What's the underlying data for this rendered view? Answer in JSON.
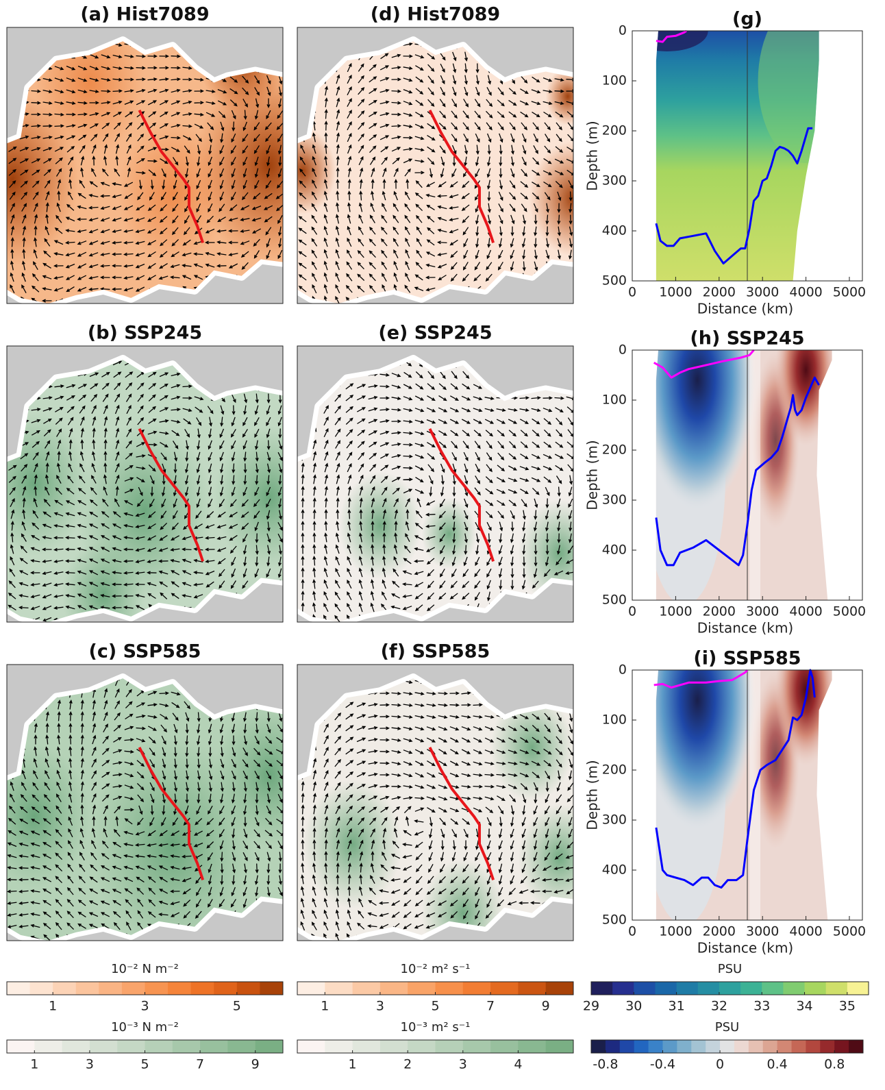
{
  "chart_data": [
    {
      "type": "map",
      "title": "(a) Hist7089"
    },
    {
      "type": "map",
      "title": "(b) SSP245"
    },
    {
      "type": "map",
      "title": "(c) SSP585"
    },
    {
      "type": "map",
      "title": "(d) Hist7089"
    },
    {
      "type": "map",
      "title": "(e) SSP245"
    },
    {
      "type": "map",
      "title": "(f) SSP585"
    },
    {
      "type": "section",
      "title": "(g)",
      "xlabel": "Distance (km)",
      "ylabel": "Depth (m)",
      "xlim": [
        0,
        5300
      ],
      "ylim": [
        500,
        0
      ],
      "xticks": [
        0,
        1000,
        2000,
        3000,
        4000,
        5000
      ],
      "yticks": [
        0,
        100,
        200,
        300,
        400,
        500
      ],
      "vline": 2650,
      "fill": "mean",
      "series": [
        {
          "color": "#0000ff",
          "x": [
            550,
            650,
            800,
            950,
            1100,
            1400,
            1700,
            1900,
            2100,
            2300,
            2500,
            2600,
            2700,
            2800,
            2900,
            3000,
            3100,
            3200,
            3300,
            3400,
            3500,
            3600,
            3700,
            3800,
            3900,
            4000,
            4050,
            4150
          ],
          "values": [
            385,
            420,
            430,
            430,
            415,
            410,
            405,
            440,
            465,
            450,
            435,
            435,
            395,
            340,
            330,
            300,
            295,
            270,
            240,
            232,
            235,
            240,
            250,
            265,
            240,
            210,
            195,
            195
          ]
        },
        {
          "color": "#ff00ff",
          "x": [
            550,
            700,
            800,
            1000,
            1200,
            1250
          ],
          "values": [
            20,
            22,
            12,
            10,
            3,
            0
          ]
        }
      ]
    },
    {
      "type": "section",
      "title": "(h) SSP245",
      "xlabel": "Distance (km)",
      "ylabel": "Depth (m)",
      "xlim": [
        0,
        5300
      ],
      "ylim": [
        500,
        0
      ],
      "xticks": [
        0,
        1000,
        2000,
        3000,
        4000,
        5000
      ],
      "yticks": [
        0,
        100,
        200,
        300,
        400,
        500
      ],
      "vline": 2650,
      "fill": "anomaly",
      "series": [
        {
          "color": "#0000ff",
          "x": [
            550,
            650,
            800,
            950,
            1100,
            1400,
            1700,
            2000,
            2300,
            2450,
            2550,
            2650,
            2750,
            2850,
            3050,
            3200,
            3350,
            3450,
            3500,
            3600,
            3650,
            3700,
            3750,
            3800,
            3900,
            4000,
            4100,
            4200,
            4300
          ],
          "values": [
            335,
            400,
            430,
            430,
            405,
            395,
            380,
            400,
            420,
            430,
            410,
            350,
            280,
            240,
            225,
            215,
            200,
            175,
            160,
            130,
            115,
            90,
            120,
            130,
            120,
            95,
            75,
            55,
            70
          ]
        },
        {
          "color": "#ff00ff",
          "x": [
            500,
            700,
            900,
            1100,
            1300,
            1700,
            2100,
            2500,
            2700,
            2800
          ],
          "values": [
            25,
            35,
            55,
            45,
            38,
            30,
            22,
            15,
            10,
            0
          ]
        }
      ]
    },
    {
      "type": "section",
      "title": "(i) SSP585",
      "xlabel": "Distance (km)",
      "ylabel": "Depth (m)",
      "xlim": [
        0,
        5300
      ],
      "ylim": [
        500,
        0
      ],
      "xticks": [
        0,
        1000,
        2000,
        3000,
        4000,
        5000
      ],
      "yticks": [
        0,
        100,
        200,
        300,
        400,
        500
      ],
      "vline": 2650,
      "fill": "anomaly",
      "series": [
        {
          "color": "#0000ff",
          "x": [
            550,
            700,
            800,
            1000,
            1200,
            1400,
            1600,
            1750,
            1900,
            2050,
            2200,
            2400,
            2550,
            2650,
            2800,
            2950,
            3100,
            3200,
            3300,
            3450,
            3600,
            3700,
            3800,
            3900,
            4000,
            4100,
            4150,
            4200
          ],
          "values": [
            315,
            400,
            410,
            415,
            420,
            430,
            415,
            415,
            430,
            435,
            420,
            420,
            410,
            340,
            240,
            200,
            190,
            185,
            180,
            160,
            140,
            95,
            100,
            90,
            55,
            0,
            15,
            55
          ]
        },
        {
          "color": "#ff00ff",
          "x": [
            500,
            700,
            900,
            1100,
            1300,
            1700,
            2000,
            2300,
            2400,
            2600,
            2650
          ],
          "values": [
            30,
            28,
            35,
            30,
            25,
            25,
            22,
            20,
            15,
            5,
            0
          ]
        }
      ]
    },
    {
      "type": "colorbar",
      "label": "10⁻² N m⁻²",
      "xlim": [
        0,
        6
      ],
      "xticks": [
        1,
        3,
        5
      ],
      "colors": [
        "#fdeee3",
        "#fde3d0",
        "#fcd3b6",
        "#fbc49d",
        "#fab484",
        "#f9a46b",
        "#f79451",
        "#f5843a",
        "#ee7327",
        "#e0631a",
        "#c9520f",
        "#a84208"
      ]
    },
    {
      "type": "colorbar",
      "label": "10⁻³ N m⁻²",
      "xlim": [
        0,
        10
      ],
      "xticks": [
        1,
        3,
        5,
        7,
        9
      ],
      "colors": [
        "#fbf4f2",
        "#eeeee8",
        "#e1e7dd",
        "#d3dfd1",
        "#c5d8c5",
        "#b6d0b8",
        "#a7c8ab",
        "#98c09e",
        "#89b891",
        "#7aaf84"
      ]
    },
    {
      "type": "colorbar",
      "label": "10⁻² m² s⁻¹",
      "xlim": [
        0,
        10
      ],
      "xticks": [
        1,
        3,
        5,
        7,
        9
      ],
      "colors": [
        "#fdeee3",
        "#fcdcc4",
        "#fbc9a5",
        "#fab686",
        "#f9a367",
        "#f7904b",
        "#f27d33",
        "#e46a20",
        "#cb5512",
        "#a84208"
      ]
    },
    {
      "type": "colorbar",
      "label": "10⁻³ m² s⁻¹",
      "xlim": [
        0,
        5
      ],
      "xticks": [
        1,
        2,
        3,
        4
      ],
      "colors": [
        "#fbf4f2",
        "#eeeee8",
        "#e1e7dd",
        "#d3dfd1",
        "#c5d8c5",
        "#b6d0b8",
        "#a7c8ab",
        "#98c09e",
        "#89b891",
        "#7aaf84"
      ]
    },
    {
      "type": "colorbar",
      "label": "PSU",
      "xlim": [
        29,
        35.5
      ],
      "xticks": [
        29,
        30,
        31,
        32,
        33,
        34,
        35
      ],
      "colors": [
        "#1f1f5c",
        "#262f8f",
        "#1d4fa6",
        "#1a67a8",
        "#1f7ca6",
        "#258ea3",
        "#2ea19e",
        "#3cb295",
        "#5ec187",
        "#80cc70",
        "#a7d65f",
        "#cfdf6a",
        "#f7f294"
      ]
    },
    {
      "type": "colorbar",
      "label": "PSU",
      "xlim": [
        -0.9,
        1.0
      ],
      "xticks": [
        -0.8,
        -0.4,
        0,
        0.4,
        0.8
      ],
      "colors": [
        "#1a1f4a",
        "#1d2a80",
        "#1f48a8",
        "#2266c0",
        "#3a82c8",
        "#5c9ac8",
        "#7fb0cc",
        "#a3c3d3",
        "#c4d3dc",
        "#e2e3e4",
        "#ecd8d2",
        "#e6c0b3",
        "#dca593",
        "#d28774",
        "#c56756",
        "#b2473e",
        "#962a2c",
        "#76151f",
        "#4f0b15"
      ]
    }
  ]
}
